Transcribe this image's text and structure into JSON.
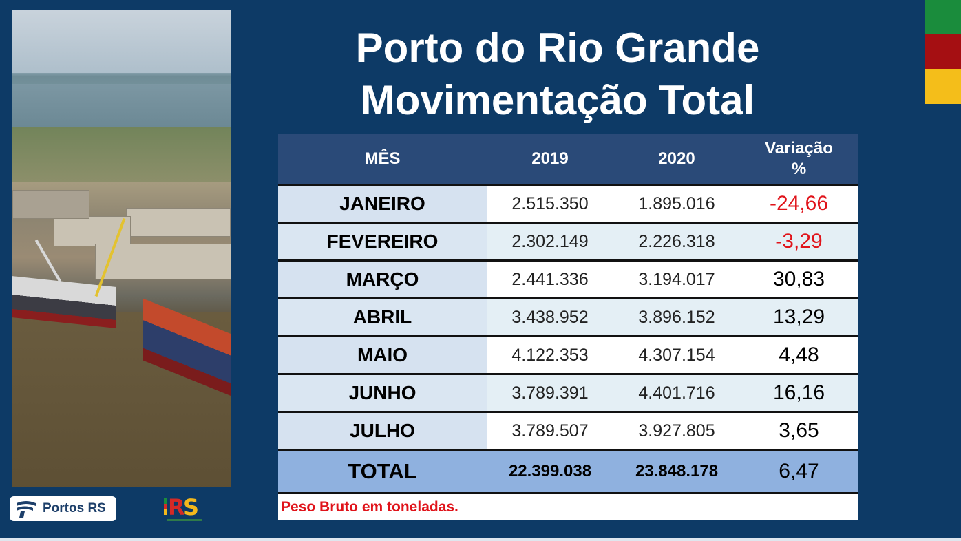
{
  "title": {
    "line1": "Porto do Rio Grande",
    "line2": "Movimentação Total"
  },
  "table": {
    "headers": {
      "mes": "MÊS",
      "y2019": "2019",
      "y2020": "2020",
      "variacao_line1": "Variação",
      "variacao_line2": "%"
    },
    "rows": [
      {
        "mes": "JANEIRO",
        "y2019": "2.515.350",
        "y2020": "1.895.016",
        "variacao": "-24,66"
      },
      {
        "mes": "FEVEREIRO",
        "y2019": "2.302.149",
        "y2020": "2.226.318",
        "variacao": "-3,29"
      },
      {
        "mes": "MARÇO",
        "y2019": "2.441.336",
        "y2020": "3.194.017",
        "variacao": "30,83"
      },
      {
        "mes": "ABRIL",
        "y2019": "3.438.952",
        "y2020": "3.896.152",
        "variacao": "13,29"
      },
      {
        "mes": "MAIO",
        "y2019": "4.122.353",
        "y2020": "4.307.154",
        "variacao": "4,48"
      },
      {
        "mes": "JUNHO",
        "y2019": "3.789.391",
        "y2020": "4.401.716",
        "variacao": "16,16"
      },
      {
        "mes": "JULHO",
        "y2019": "3.789.507",
        "y2020": "3.927.805",
        "variacao": "3,65"
      }
    ],
    "total": {
      "mes": "TOTAL",
      "y2019": "22.399.038",
      "y2020": "23.848.178",
      "variacao": "6,47"
    },
    "note": "Peso Bruto em toneladas."
  },
  "logos": {
    "portos_label": "Portos RS",
    "rs_r": "R",
    "rs_s": "S"
  },
  "colors": {
    "background": "#0d3a66",
    "header": "#2a4a78",
    "total_row": "#8fb1df",
    "negative": "#e0131a",
    "flag_green": "#1a8c3c",
    "flag_red": "#a50f12",
    "flag_yellow": "#f4be1a"
  }
}
